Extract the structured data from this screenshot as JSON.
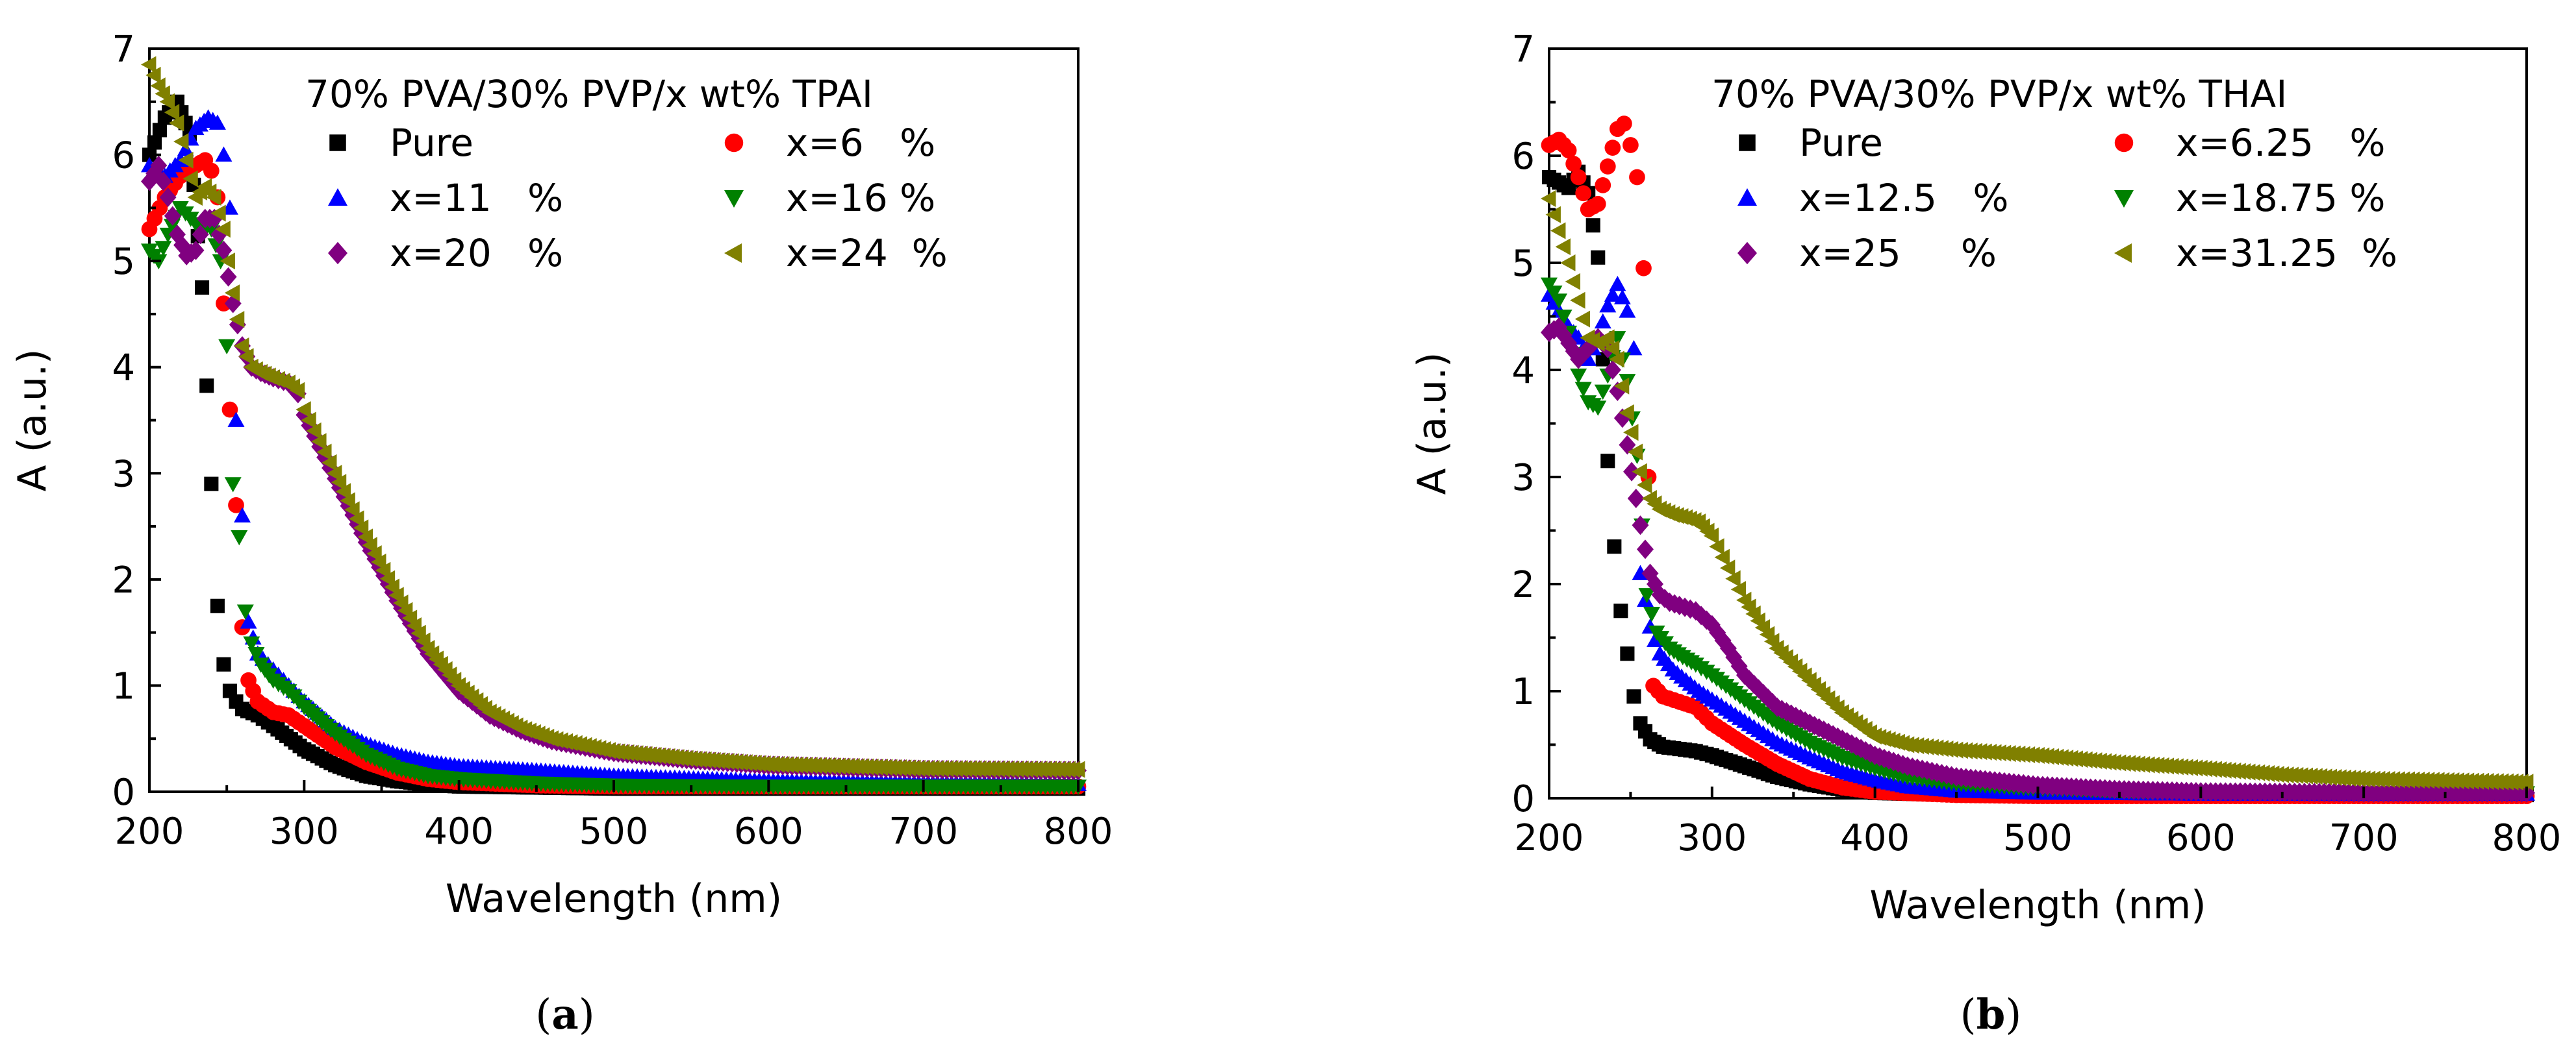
{
  "chart_data": [
    {
      "type": "scatter",
      "panel_label_open": "(",
      "panel_label": "a",
      "panel_label_close": ")",
      "title": "70% PVA/30% PVP/x wt% TPAI",
      "xlabel": "Wavelength (nm)",
      "ylabel": "A (a.u.)",
      "xlim": [
        200,
        800
      ],
      "ylim": [
        0,
        7
      ],
      "xticks": [
        200,
        300,
        400,
        500,
        600,
        700,
        800
      ],
      "yticks": [
        0,
        1,
        2,
        3,
        4,
        5,
        6,
        7
      ],
      "legend_position": "top-right",
      "series": [
        {
          "name": "Pure",
          "marker": "square",
          "color": "#000000",
          "x": [
            200,
            210,
            218,
            226,
            234,
            240,
            244,
            248,
            252,
            256,
            260,
            270,
            280,
            300,
            320,
            340,
            360,
            380,
            400,
            450,
            500,
            600,
            700,
            800
          ],
          "y": [
            6.0,
            6.35,
            6.5,
            6.2,
            4.75,
            2.9,
            1.75,
            1.2,
            0.95,
            0.85,
            0.78,
            0.72,
            0.62,
            0.4,
            0.25,
            0.15,
            0.1,
            0.07,
            0.05,
            0.04,
            0.03,
            0.03,
            0.03,
            0.03
          ]
        },
        {
          "name": "x=6   %",
          "marker": "circle",
          "color": "#ff0000",
          "x": [
            200,
            210,
            220,
            230,
            236,
            240,
            244,
            248,
            252,
            256,
            260,
            264,
            270,
            280,
            290,
            300,
            320,
            340,
            360,
            380,
            400,
            450,
            500,
            600,
            700,
            800
          ],
          "y": [
            5.3,
            5.6,
            5.8,
            5.9,
            5.95,
            5.85,
            5.6,
            4.6,
            3.6,
            2.7,
            1.55,
            1.05,
            0.85,
            0.75,
            0.72,
            0.62,
            0.42,
            0.28,
            0.18,
            0.12,
            0.09,
            0.06,
            0.05,
            0.05,
            0.05,
            0.05
          ]
        },
        {
          "name": "x=11   %",
          "marker": "triangle-up",
          "color": "#0000ff",
          "x": [
            200,
            210,
            220,
            230,
            238,
            244,
            248,
            252,
            256,
            260,
            264,
            270,
            280,
            290,
            300,
            320,
            340,
            360,
            380,
            400,
            450,
            500,
            600,
            700,
            800
          ],
          "y": [
            5.9,
            5.8,
            5.95,
            6.25,
            6.35,
            6.3,
            6.0,
            5.5,
            3.5,
            2.6,
            1.6,
            1.3,
            1.15,
            1.0,
            0.85,
            0.6,
            0.45,
            0.35,
            0.28,
            0.24,
            0.2,
            0.15,
            0.1,
            0.08,
            0.07
          ]
        },
        {
          "name": "x=16 %",
          "marker": "triangle-down",
          "color": "#008000",
          "x": [
            200,
            206,
            212,
            220,
            230,
            240,
            246,
            250,
            254,
            258,
            262,
            266,
            272,
            280,
            290,
            300,
            320,
            340,
            360,
            380,
            400,
            450,
            500,
            600,
            700,
            800
          ],
          "y": [
            5.1,
            5.0,
            5.25,
            5.5,
            5.35,
            5.3,
            5.0,
            4.2,
            2.9,
            2.4,
            1.7,
            1.4,
            1.2,
            1.05,
            0.95,
            0.8,
            0.55,
            0.35,
            0.22,
            0.15,
            0.12,
            0.08,
            0.06,
            0.05,
            0.05,
            0.05
          ]
        },
        {
          "name": "x=20   %",
          "marker": "diamond",
          "color": "#800080",
          "x": [
            200,
            206,
            212,
            218,
            224,
            230,
            236,
            242,
            248,
            254,
            260,
            266,
            272,
            280,
            290,
            296,
            300,
            310,
            320,
            340,
            360,
            380,
            400,
            420,
            440,
            460,
            500,
            550,
            600,
            700,
            800
          ],
          "y": [
            5.75,
            5.9,
            5.6,
            5.25,
            5.05,
            5.1,
            5.4,
            5.4,
            5.1,
            4.6,
            4.2,
            4.0,
            3.95,
            3.9,
            3.85,
            3.75,
            3.55,
            3.25,
            2.95,
            2.35,
            1.8,
            1.3,
            0.95,
            0.72,
            0.58,
            0.48,
            0.37,
            0.3,
            0.25,
            0.21,
            0.2
          ]
        },
        {
          "name": "x=24  %",
          "marker": "triangle-left",
          "color": "#808000",
          "x": [
            200,
            206,
            212,
            218,
            224,
            230,
            236,
            242,
            248,
            254,
            260,
            266,
            272,
            280,
            290,
            296,
            300,
            310,
            320,
            340,
            360,
            380,
            400,
            420,
            440,
            460,
            500,
            550,
            600,
            700,
            800
          ],
          "y": [
            6.85,
            6.65,
            6.5,
            6.3,
            5.95,
            5.6,
            5.7,
            5.6,
            5.3,
            4.7,
            4.2,
            4.0,
            3.95,
            3.9,
            3.85,
            3.78,
            3.6,
            3.3,
            3.0,
            2.4,
            1.85,
            1.35,
            1.0,
            0.75,
            0.6,
            0.5,
            0.38,
            0.31,
            0.26,
            0.22,
            0.21
          ]
        }
      ]
    },
    {
      "type": "scatter",
      "panel_label_open": "(",
      "panel_label": "b",
      "panel_label_close": ")",
      "title": "70% PVA/30% PVP/x wt% THAI",
      "xlabel": "Wavelength (nm)",
      "ylabel": "A (a.u.)",
      "xlim": [
        200,
        800
      ],
      "ylim": [
        0,
        7
      ],
      "xticks": [
        200,
        300,
        400,
        500,
        600,
        700,
        800
      ],
      "yticks": [
        0,
        1,
        2,
        3,
        4,
        5,
        6,
        7
      ],
      "legend_position": "top-right",
      "series": [
        {
          "name": "Pure",
          "marker": "square",
          "color": "#000000",
          "x": [
            200,
            206,
            212,
            218,
            224,
            230,
            236,
            240,
            244,
            248,
            252,
            256,
            262,
            270,
            280,
            290,
            300,
            320,
            340,
            360,
            380,
            400,
            450,
            500,
            600,
            700,
            800
          ],
          "y": [
            5.8,
            5.75,
            5.7,
            5.85,
            5.65,
            5.05,
            3.15,
            2.35,
            1.75,
            1.35,
            0.95,
            0.7,
            0.55,
            0.48,
            0.46,
            0.44,
            0.4,
            0.3,
            0.2,
            0.13,
            0.08,
            0.05,
            0.03,
            0.03,
            0.03,
            0.03,
            0.03
          ]
        },
        {
          "name": "x=6.25   %",
          "marker": "circle",
          "color": "#ff0000",
          "x": [
            200,
            206,
            212,
            218,
            224,
            230,
            236,
            242,
            246,
            250,
            254,
            258,
            264,
            270,
            280,
            290,
            300,
            320,
            340,
            360,
            380,
            400,
            450,
            500,
            600,
            700,
            800
          ],
          "y": [
            6.1,
            6.15,
            6.05,
            5.8,
            5.5,
            5.55,
            5.9,
            6.25,
            6.3,
            6.1,
            5.8,
            4.95,
            1.05,
            0.95,
            0.9,
            0.85,
            0.7,
            0.5,
            0.32,
            0.18,
            0.1,
            0.06,
            0.03,
            0.02,
            0.02,
            0.02,
            0.02
          ]
        },
        {
          "name": "x=12.5   %",
          "marker": "triangle-up",
          "color": "#0000ff",
          "x": [
            200,
            206,
            212,
            218,
            224,
            230,
            236,
            242,
            248,
            252,
            256,
            262,
            268,
            276,
            284,
            292,
            300,
            320,
            340,
            360,
            380,
            400,
            420,
            450,
            500,
            600,
            700,
            800
          ],
          "y": [
            4.7,
            4.55,
            4.4,
            4.3,
            4.1,
            4.3,
            4.6,
            4.8,
            4.55,
            4.2,
            2.1,
            1.6,
            1.35,
            1.2,
            1.1,
            1.0,
            0.92,
            0.72,
            0.52,
            0.38,
            0.25,
            0.17,
            0.11,
            0.07,
            0.05,
            0.04,
            0.04,
            0.04
          ]
        },
        {
          "name": "x=18.75 %",
          "marker": "triangle-down",
          "color": "#008000",
          "x": [
            200,
            206,
            212,
            218,
            224,
            230,
            236,
            242,
            248,
            254,
            260,
            266,
            274,
            282,
            290,
            300,
            320,
            340,
            360,
            380,
            400,
            420,
            450,
            500,
            600,
            700,
            800
          ],
          "y": [
            4.8,
            4.65,
            4.35,
            3.95,
            3.7,
            3.65,
            3.95,
            4.3,
            3.9,
            3.2,
            1.9,
            1.55,
            1.4,
            1.32,
            1.25,
            1.15,
            0.92,
            0.7,
            0.52,
            0.38,
            0.28,
            0.2,
            0.14,
            0.09,
            0.06,
            0.05,
            0.05
          ]
        },
        {
          "name": "x=25     %",
          "marker": "diamond",
          "color": "#800080",
          "x": [
            200,
            206,
            212,
            218,
            224,
            230,
            236,
            242,
            248,
            256,
            262,
            268,
            274,
            280,
            290,
            300,
            310,
            320,
            340,
            360,
            380,
            400,
            420,
            450,
            500,
            550,
            600,
            700,
            800
          ],
          "y": [
            4.35,
            4.4,
            4.25,
            4.1,
            4.2,
            4.3,
            4.2,
            3.8,
            3.3,
            2.55,
            2.1,
            1.9,
            1.83,
            1.8,
            1.75,
            1.62,
            1.4,
            1.15,
            0.85,
            0.7,
            0.55,
            0.4,
            0.3,
            0.2,
            0.12,
            0.08,
            0.06,
            0.05,
            0.05
          ]
        },
        {
          "name": "x=31.25  %",
          "marker": "triangle-left",
          "color": "#808000",
          "x": [
            200,
            206,
            212,
            218,
            224,
            230,
            236,
            242,
            248,
            256,
            262,
            268,
            276,
            284,
            292,
            300,
            310,
            320,
            340,
            360,
            380,
            400,
            420,
            450,
            500,
            550,
            600,
            650,
            700,
            800
          ],
          "y": [
            5.6,
            5.3,
            5.0,
            4.65,
            4.3,
            4.25,
            4.3,
            4.1,
            3.6,
            3.05,
            2.8,
            2.7,
            2.65,
            2.62,
            2.58,
            2.45,
            2.15,
            1.85,
            1.4,
            1.1,
            0.8,
            0.58,
            0.5,
            0.45,
            0.4,
            0.33,
            0.28,
            0.22,
            0.18,
            0.15
          ]
        }
      ]
    }
  ],
  "legend_columns": 2
}
